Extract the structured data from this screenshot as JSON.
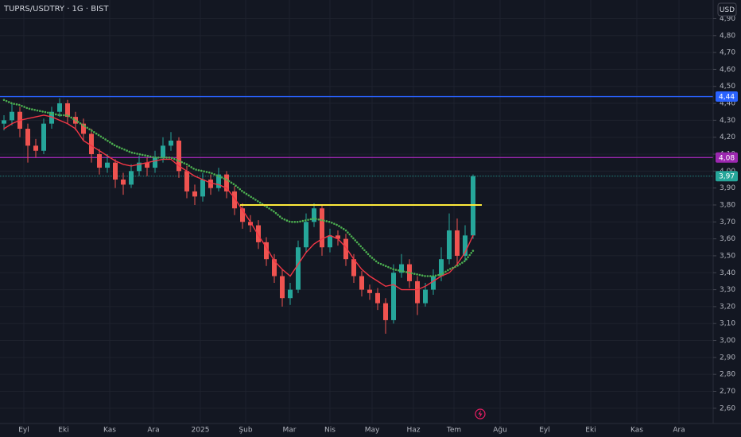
{
  "chart_data": {
    "type": "candlestick",
    "title": "TUPRS/USDTRY · 1G · BIST",
    "currency": "USD",
    "up_color": "#26a69a",
    "down_color": "#ef5350",
    "candles": [
      [
        4.28,
        4.33,
        4.24,
        4.3
      ],
      [
        4.3,
        4.4,
        4.27,
        4.35
      ],
      [
        4.35,
        4.38,
        4.2,
        4.25
      ],
      [
        4.25,
        4.28,
        4.05,
        4.15
      ],
      [
        4.15,
        4.19,
        4.08,
        4.12
      ],
      [
        4.12,
        4.31,
        4.1,
        4.28
      ],
      [
        4.28,
        4.38,
        4.25,
        4.35
      ],
      [
        4.35,
        4.43,
        4.32,
        4.4
      ],
      [
        4.4,
        4.42,
        4.28,
        4.32
      ],
      [
        4.32,
        4.35,
        4.24,
        4.28
      ],
      [
        4.28,
        4.31,
        4.18,
        4.22
      ],
      [
        4.22,
        4.25,
        4.05,
        4.1
      ],
      [
        4.1,
        4.13,
        3.98,
        4.02
      ],
      [
        4.02,
        4.1,
        3.99,
        4.05
      ],
      [
        4.05,
        4.07,
        3.9,
        3.95
      ],
      [
        3.95,
        3.99,
        3.86,
        3.92
      ],
      [
        3.92,
        4.04,
        3.9,
        4.0
      ],
      [
        4.0,
        4.09,
        3.97,
        4.05
      ],
      [
        4.05,
        4.08,
        3.97,
        4.02
      ],
      [
        4.02,
        4.12,
        3.99,
        4.08
      ],
      [
        4.08,
        4.2,
        4.05,
        4.15
      ],
      [
        4.15,
        4.23,
        4.12,
        4.18
      ],
      [
        4.18,
        4.2,
        3.96,
        4.0
      ],
      [
        4.0,
        4.03,
        3.84,
        3.88
      ],
      [
        3.88,
        3.92,
        3.8,
        3.85
      ],
      [
        3.85,
        3.99,
        3.82,
        3.95
      ],
      [
        3.95,
        3.98,
        3.86,
        3.9
      ],
      [
        3.9,
        4.02,
        3.88,
        3.98
      ],
      [
        3.98,
        4.0,
        3.84,
        3.88
      ],
      [
        3.88,
        3.91,
        3.74,
        3.78
      ],
      [
        3.78,
        3.81,
        3.66,
        3.7
      ],
      [
        3.7,
        3.74,
        3.64,
        3.68
      ],
      [
        3.68,
        3.71,
        3.54,
        3.58
      ],
      [
        3.58,
        3.61,
        3.44,
        3.48
      ],
      [
        3.48,
        3.51,
        3.34,
        3.38
      ],
      [
        3.38,
        3.42,
        3.2,
        3.25
      ],
      [
        3.25,
        3.34,
        3.21,
        3.3
      ],
      [
        3.3,
        3.59,
        3.28,
        3.55
      ],
      [
        3.55,
        3.75,
        3.52,
        3.7
      ],
      [
        3.7,
        3.81,
        3.67,
        3.78
      ],
      [
        3.78,
        3.8,
        3.5,
        3.55
      ],
      [
        3.55,
        3.66,
        3.52,
        3.62
      ],
      [
        3.62,
        3.65,
        3.56,
        3.6
      ],
      [
        3.6,
        3.63,
        3.44,
        3.48
      ],
      [
        3.48,
        3.51,
        3.34,
        3.38
      ],
      [
        3.38,
        3.41,
        3.26,
        3.3
      ],
      [
        3.3,
        3.33,
        3.24,
        3.28
      ],
      [
        3.28,
        3.31,
        3.18,
        3.22
      ],
      [
        3.22,
        3.25,
        3.04,
        3.12
      ],
      [
        3.12,
        3.45,
        3.1,
        3.4
      ],
      [
        3.4,
        3.51,
        3.37,
        3.45
      ],
      [
        3.45,
        3.48,
        3.31,
        3.35
      ],
      [
        3.35,
        3.38,
        3.15,
        3.22
      ],
      [
        3.22,
        3.34,
        3.2,
        3.3
      ],
      [
        3.3,
        3.42,
        3.27,
        3.38
      ],
      [
        3.38,
        3.55,
        3.35,
        3.48
      ],
      [
        3.48,
        3.75,
        3.45,
        3.65
      ],
      [
        3.65,
        3.72,
        3.45,
        3.5
      ],
      [
        3.5,
        3.68,
        3.47,
        3.62
      ],
      [
        3.62,
        3.98,
        3.6,
        3.97
      ]
    ],
    "series": [
      {
        "color": "#f23645",
        "style": "solid",
        "values": [
          4.25,
          4.28,
          4.3,
          4.31,
          4.32,
          4.33,
          4.32,
          4.3,
          4.28,
          4.25,
          4.18,
          4.15,
          4.12,
          4.09,
          4.06,
          4.04,
          4.03,
          4.04,
          4.05,
          4.06,
          4.07,
          4.07,
          4.03,
          4.0,
          3.97,
          3.95,
          3.93,
          3.92,
          3.9,
          3.84,
          3.77,
          3.7,
          3.62,
          3.55,
          3.47,
          3.42,
          3.38,
          3.45,
          3.52,
          3.57,
          3.6,
          3.62,
          3.6,
          3.55,
          3.48,
          3.42,
          3.38,
          3.35,
          3.32,
          3.33,
          3.3,
          3.3,
          3.3,
          3.32,
          3.35,
          3.38,
          3.4,
          3.45,
          3.52,
          3.62
        ]
      },
      {
        "color": "#4caf50",
        "style": "dotted",
        "values": [
          4.42,
          4.4,
          4.39,
          4.37,
          4.36,
          4.35,
          4.34,
          4.33,
          4.33,
          4.3,
          4.27,
          4.24,
          4.21,
          4.18,
          4.15,
          4.13,
          4.11,
          4.1,
          4.09,
          4.08,
          4.08,
          4.08,
          4.06,
          4.04,
          4.01,
          4.0,
          3.99,
          3.97,
          3.95,
          3.92,
          3.88,
          3.85,
          3.82,
          3.79,
          3.76,
          3.72,
          3.7,
          3.7,
          3.71,
          3.72,
          3.71,
          3.7,
          3.68,
          3.65,
          3.6,
          3.55,
          3.5,
          3.46,
          3.44,
          3.42,
          3.41,
          3.4,
          3.39,
          3.38,
          3.38,
          3.39,
          3.42,
          3.44,
          3.47,
          3.53
        ]
      }
    ],
    "hlines": [
      {
        "value": 4.44,
        "label": "4,44",
        "color": "#2962ff"
      },
      {
        "value": 4.08,
        "label": "4,08",
        "color": "#9c27b0"
      },
      {
        "value": 3.97,
        "label": "3,97",
        "color": "#26a69a"
      }
    ],
    "segments": [
      {
        "value": 3.8,
        "x": [
          29.7,
          60.1
        ],
        "color": "#ffeb3b"
      }
    ],
    "xlim": [
      -0.5,
      89.2
    ],
    "ylim": [
      2.51,
      5.01
    ],
    "xticks": [
      {
        "value": 2.5,
        "label": "Eyl"
      },
      {
        "value": 7.5,
        "label": "Eki"
      },
      {
        "value": 13.3,
        "label": "Kas"
      },
      {
        "value": 18.8,
        "label": "Ara"
      },
      {
        "value": 24.7,
        "label": "2025"
      },
      {
        "value": 30.4,
        "label": "Şub"
      },
      {
        "value": 35.9,
        "label": "Mar"
      },
      {
        "value": 41,
        "label": "Nis"
      },
      {
        "value": 46.3,
        "label": "May"
      },
      {
        "value": 51.5,
        "label": "Haz"
      },
      {
        "value": 56.6,
        "label": "Tem"
      },
      {
        "value": 62.4,
        "label": "Ağu"
      },
      {
        "value": 68,
        "label": "Eyl"
      },
      {
        "value": 73.8,
        "label": "Eki"
      },
      {
        "value": 79.6,
        "label": "Kas"
      },
      {
        "value": 84.9,
        "label": "Ara"
      }
    ],
    "yticks": [
      {
        "value": 2.6,
        "label": "2,60"
      },
      {
        "value": 2.7,
        "label": "2,70"
      },
      {
        "value": 2.8,
        "label": "2,80"
      },
      {
        "value": 2.9,
        "label": "2,90"
      },
      {
        "value": 3.0,
        "label": "3,00"
      },
      {
        "value": 3.1,
        "label": "3,10"
      },
      {
        "value": 3.2,
        "label": "3,20"
      },
      {
        "value": 3.3,
        "label": "3,30"
      },
      {
        "value": 3.4,
        "label": "3,40"
      },
      {
        "value": 3.5,
        "label": "3,50"
      },
      {
        "value": 3.6,
        "label": "3,60"
      },
      {
        "value": 3.7,
        "label": "3,70"
      },
      {
        "value": 3.8,
        "label": "3,80"
      },
      {
        "value": 3.9,
        "label": "3,90"
      },
      {
        "value": 4.0,
        "label": "4,00"
      },
      {
        "value": 4.1,
        "label": "4,10"
      },
      {
        "value": 4.2,
        "label": "4,20"
      },
      {
        "value": 4.3,
        "label": "4,30"
      },
      {
        "value": 4.4,
        "label": "4,40"
      },
      {
        "value": 4.5,
        "label": "4,50"
      },
      {
        "value": 4.6,
        "label": "4,60"
      },
      {
        "value": 4.7,
        "label": "4,70"
      },
      {
        "value": 4.8,
        "label": "4,80"
      },
      {
        "value": 4.9,
        "label": "4,90"
      }
    ],
    "grid": true
  }
}
